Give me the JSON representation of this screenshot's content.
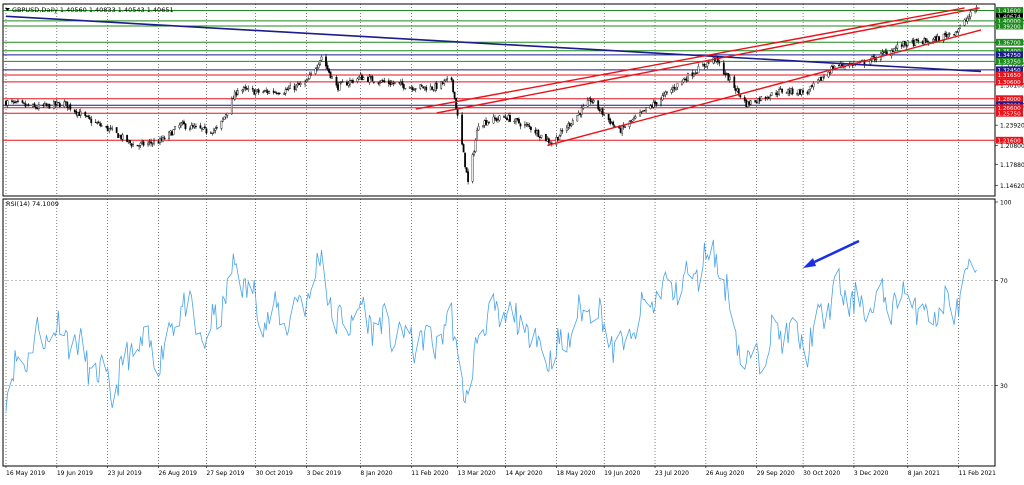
{
  "header": {
    "symbol_text": "GBPUSD,Daily  1.40560 1.40833 1.40543 1.40651",
    "rsi_text": "RSI(14) 74.1009"
  },
  "colors": {
    "candle": "#000000",
    "grid": "#000000",
    "green_level": "#1f8a1f",
    "red_level": "#e8131b",
    "navy_level": "#1c1c8c",
    "trend_red": "#e8131b",
    "trend_navy": "#1c1c8c",
    "rsi_line": "#4aa3e8",
    "arrow": "#1a2ee6"
  },
  "chart_data": [
    {
      "type": "candlestick",
      "title": "",
      "x_tick_labels": [
        "16 May 2019",
        "19 Jun 2019",
        "23 Jul 2019",
        "26 Aug 2019",
        "27 Sep 2019",
        "30 Oct 2019",
        "3 Dec 2019",
        "8 Jan 2020",
        "11 Feb 2020",
        "13 Mar 2020",
        "14 Apr 2020",
        "18 May 2020",
        "19 Jun 2020",
        "23 Jul 2020",
        "26 Aug 2020",
        "29 Sep 2020",
        "30 Oct 2020",
        "3 Dec 2020",
        "8 Jan 2021",
        "11 Feb 2021"
      ],
      "y_tick_labels": [
        "1.14620",
        "1.17880",
        "1.20800",
        "1.23920",
        "1.27000",
        "1.30100",
        "1.33280",
        "1.36700",
        "1.39800"
      ],
      "ylim": [
        1.13,
        1.426
      ],
      "price_levels": [
        {
          "label": "1.41600",
          "value": 1.416,
          "color": "green"
        },
        {
          "label": "1.40674",
          "value": 1.40674,
          "color": "black"
        },
        {
          "label": "1.40000",
          "value": 1.4,
          "color": "green"
        },
        {
          "label": "1.39200",
          "value": 1.392,
          "color": "green"
        },
        {
          "label": "1.36700",
          "value": 1.367,
          "color": "green"
        },
        {
          "label": "1.35400",
          "value": 1.354,
          "color": "green"
        },
        {
          "label": "1.34750",
          "value": 1.3475,
          "color": "navy"
        },
        {
          "label": "1.33750",
          "value": 1.3375,
          "color": "green"
        },
        {
          "label": "1.32450",
          "value": 1.3245,
          "color": "navy"
        },
        {
          "label": "1.31650",
          "value": 1.3165,
          "color": "red"
        },
        {
          "label": "1.30600",
          "value": 1.306,
          "color": "red"
        },
        {
          "label": "1.28000",
          "value": 1.28,
          "color": "red"
        },
        {
          "label": "1.27000",
          "value": 1.27,
          "color": "navy"
        },
        {
          "label": "1.26600",
          "value": 1.266,
          "color": "red"
        },
        {
          "label": "1.25750",
          "value": 1.2575,
          "color": "red"
        },
        {
          "label": "1.21600",
          "value": 1.216,
          "color": "red"
        }
      ],
      "trendlines": [
        {
          "color": "navy",
          "from": {
            "x": "2019-05-16",
            "y": 1.407
          },
          "to": {
            "x": "2021-02-26",
            "y": 1.322
          }
        },
        {
          "color": "red",
          "from": {
            "x": "2020-02-14",
            "y": 1.264
          },
          "to": {
            "x": "2021-02-15",
            "y": 1.42
          }
        },
        {
          "color": "red",
          "from": {
            "x": "2020-02-28",
            "y": 1.258
          },
          "to": {
            "x": "2021-02-25",
            "y": 1.42
          }
        },
        {
          "color": "red",
          "from": {
            "x": "2020-05-12",
            "y": 1.208
          },
          "to": {
            "x": "2021-02-26",
            "y": 1.386
          }
        }
      ],
      "price_path": [
        {
          "x": "2019-05-16",
          "y": 1.275
        },
        {
          "x": "2019-06-05",
          "y": 1.266
        },
        {
          "x": "2019-06-24",
          "y": 1.273
        },
        {
          "x": "2019-07-10",
          "y": 1.248
        },
        {
          "x": "2019-07-26",
          "y": 1.23
        },
        {
          "x": "2019-08-10",
          "y": 1.207
        },
        {
          "x": "2019-08-28",
          "y": 1.215
        },
        {
          "x": "2019-09-10",
          "y": 1.24
        },
        {
          "x": "2019-09-27",
          "y": 1.23
        },
        {
          "x": "2019-10-05",
          "y": 1.233
        },
        {
          "x": "2019-10-18",
          "y": 1.295
        },
        {
          "x": "2019-11-01",
          "y": 1.29
        },
        {
          "x": "2019-11-18",
          "y": 1.292
        },
        {
          "x": "2019-12-03",
          "y": 1.305
        },
        {
          "x": "2019-12-13",
          "y": 1.345
        },
        {
          "x": "2019-12-23",
          "y": 1.298
        },
        {
          "x": "2020-01-08",
          "y": 1.313
        },
        {
          "x": "2020-01-28",
          "y": 1.304
        },
        {
          "x": "2020-02-12",
          "y": 1.298
        },
        {
          "x": "2020-02-26",
          "y": 1.297
        },
        {
          "x": "2020-03-09",
          "y": 1.31
        },
        {
          "x": "2020-03-20",
          "y": 1.15
        },
        {
          "x": "2020-03-27",
          "y": 1.242
        },
        {
          "x": "2020-04-14",
          "y": 1.252
        },
        {
          "x": "2020-05-01",
          "y": 1.235
        },
        {
          "x": "2020-05-15",
          "y": 1.211
        },
        {
          "x": "2020-06-10",
          "y": 1.278
        },
        {
          "x": "2020-06-29",
          "y": 1.23
        },
        {
          "x": "2020-07-23",
          "y": 1.273
        },
        {
          "x": "2020-08-14",
          "y": 1.315
        },
        {
          "x": "2020-09-01",
          "y": 1.342
        },
        {
          "x": "2020-09-22",
          "y": 1.272
        },
        {
          "x": "2020-10-15",
          "y": 1.292
        },
        {
          "x": "2020-11-02",
          "y": 1.29
        },
        {
          "x": "2020-11-20",
          "y": 1.331
        },
        {
          "x": "2020-12-10",
          "y": 1.335
        },
        {
          "x": "2021-01-05",
          "y": 1.364
        },
        {
          "x": "2021-01-25",
          "y": 1.37
        },
        {
          "x": "2021-02-10",
          "y": 1.385
        },
        {
          "x": "2021-02-23",
          "y": 1.42
        }
      ]
    },
    {
      "type": "line",
      "title": "",
      "y_tick_labels": [
        "100",
        "70",
        "30"
      ],
      "ylim": [
        0,
        100
      ],
      "series": [
        {
          "name": "RSI(14)",
          "points": [
            {
              "x": "2019-05-16",
              "y": 30
            },
            {
              "x": "2019-06-05",
              "y": 48
            },
            {
              "x": "2019-06-24",
              "y": 52
            },
            {
              "x": "2019-07-10",
              "y": 38
            },
            {
              "x": "2019-07-26",
              "y": 28
            },
            {
              "x": "2019-08-10",
              "y": 45
            },
            {
              "x": "2019-08-28",
              "y": 42
            },
            {
              "x": "2019-09-10",
              "y": 62
            },
            {
              "x": "2019-09-27",
              "y": 46
            },
            {
              "x": "2019-10-05",
              "y": 58
            },
            {
              "x": "2019-10-18",
              "y": 76
            },
            {
              "x": "2019-11-01",
              "y": 58
            },
            {
              "x": "2019-11-18",
              "y": 55
            },
            {
              "x": "2019-12-03",
              "y": 64
            },
            {
              "x": "2019-12-13",
              "y": 78
            },
            {
              "x": "2019-12-23",
              "y": 52
            },
            {
              "x": "2020-01-08",
              "y": 58
            },
            {
              "x": "2020-01-28",
              "y": 50
            },
            {
              "x": "2020-02-12",
              "y": 47
            },
            {
              "x": "2020-02-26",
              "y": 46
            },
            {
              "x": "2020-03-09",
              "y": 55
            },
            {
              "x": "2020-03-20",
              "y": 20
            },
            {
              "x": "2020-03-27",
              "y": 54
            },
            {
              "x": "2020-04-14",
              "y": 57
            },
            {
              "x": "2020-05-01",
              "y": 50
            },
            {
              "x": "2020-05-15",
              "y": 40
            },
            {
              "x": "2020-06-10",
              "y": 62
            },
            {
              "x": "2020-06-29",
              "y": 42
            },
            {
              "x": "2020-07-23",
              "y": 65
            },
            {
              "x": "2020-08-14",
              "y": 70
            },
            {
              "x": "2020-09-01",
              "y": 82
            },
            {
              "x": "2020-09-22",
              "y": 36
            },
            {
              "x": "2020-10-15",
              "y": 52
            },
            {
              "x": "2020-11-02",
              "y": 45
            },
            {
              "x": "2020-11-20",
              "y": 66
            },
            {
              "x": "2020-12-10",
              "y": 60
            },
            {
              "x": "2021-01-05",
              "y": 64
            },
            {
              "x": "2021-01-25",
              "y": 57
            },
            {
              "x": "2021-02-10",
              "y": 62
            },
            {
              "x": "2021-02-23",
              "y": 74.1
            }
          ]
        }
      ],
      "level_lines": [
        70,
        30
      ]
    }
  ]
}
